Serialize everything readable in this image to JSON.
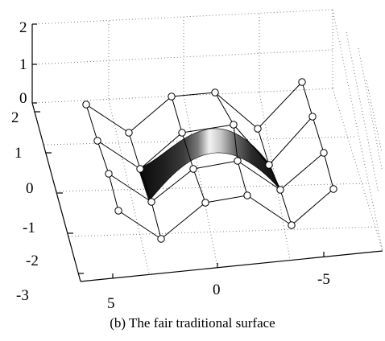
{
  "caption": "(b) The fair traditional surface",
  "chart_data": {
    "type": "surface",
    "x_ticks": [
      "5",
      "0",
      "-5"
    ],
    "y_ticks": [
      "2",
      "1",
      "0",
      "-1",
      "-2",
      "-3"
    ],
    "z_ticks": [
      "2",
      "1",
      "0"
    ],
    "x_tick_values": [
      5,
      0,
      -5
    ],
    "y_tick_values": [
      2,
      1,
      0,
      -1,
      -2,
      -3
    ],
    "z_tick_values": [
      2,
      1,
      0
    ],
    "grid": true,
    "colormap": "gray",
    "control_net": {
      "description_columns": 6,
      "description_rows": 4,
      "z": [
        [
          0,
          1,
          0,
          0,
          1,
          0
        ],
        [
          0,
          1,
          0,
          0,
          1,
          0
        ],
        [
          0,
          1,
          0,
          0,
          1,
          0
        ],
        [
          0,
          1,
          0,
          0,
          1,
          0
        ]
      ]
    }
  }
}
